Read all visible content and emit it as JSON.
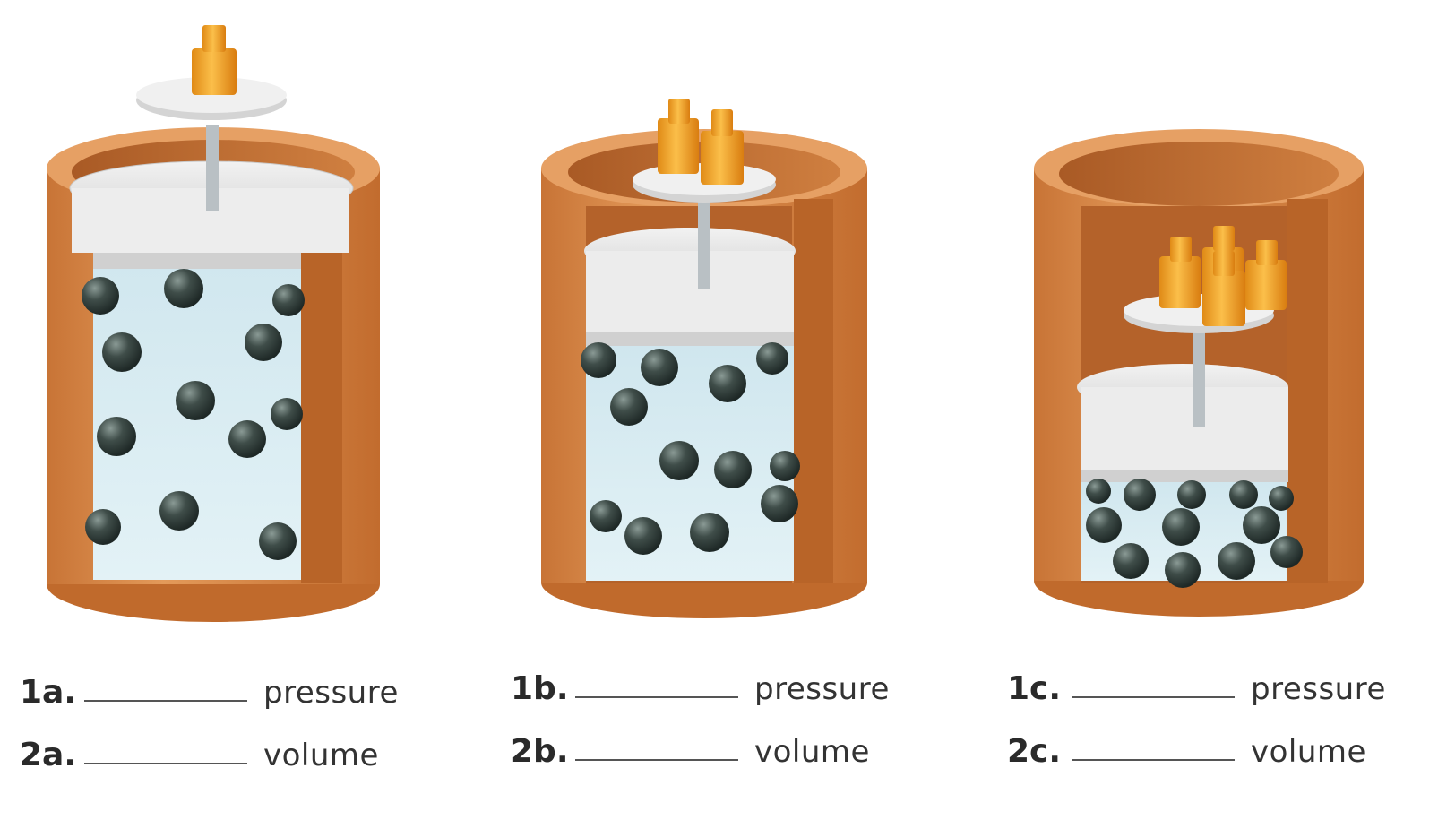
{
  "colors": {
    "cylinder": "#d9884a",
    "cylinder_inner": "#b8652a",
    "gas": "#d6ecf2",
    "molecule": "#3c4a46",
    "piston": "#e6e6e6",
    "weight": "#f2a531"
  },
  "panels": [
    {
      "id": "a",
      "weights": 1,
      "molecules": 14,
      "labels": [
        {
          "num": "1a.",
          "word": "pressure"
        },
        {
          "num": "2a.",
          "word": "volume"
        }
      ]
    },
    {
      "id": "b",
      "weights": 2,
      "molecules": 14,
      "labels": [
        {
          "num": "1b.",
          "word": "pressure"
        },
        {
          "num": "2b.",
          "word": "volume"
        }
      ]
    },
    {
      "id": "c",
      "weights": 4,
      "molecules": 14,
      "labels": [
        {
          "num": "1c.",
          "word": "pressure"
        },
        {
          "num": "2c.",
          "word": "volume"
        }
      ]
    }
  ]
}
